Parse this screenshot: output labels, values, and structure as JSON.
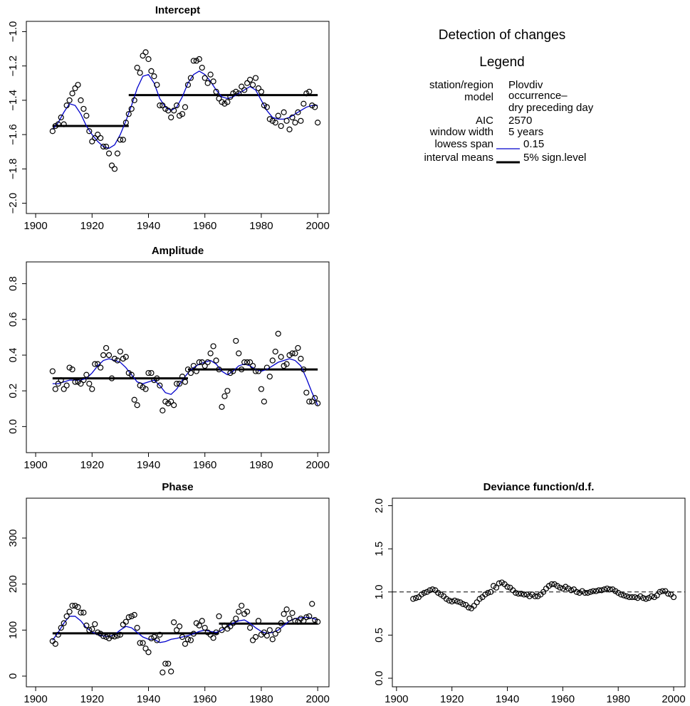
{
  "chart_data": [
    {
      "type": "scatter",
      "title": "Intercept",
      "x": [
        1906,
        1907,
        1908,
        1909,
        1910,
        1911,
        1912,
        1913,
        1914,
        1915,
        1916,
        1917,
        1918,
        1919,
        1920,
        1921,
        1922,
        1923,
        1924,
        1925,
        1926,
        1927,
        1928,
        1929,
        1930,
        1931,
        1932,
        1933,
        1934,
        1935,
        1936,
        1937,
        1938,
        1939,
        1940,
        1941,
        1942,
        1943,
        1944,
        1945,
        1946,
        1947,
        1948,
        1949,
        1950,
        1951,
        1952,
        1953,
        1954,
        1955,
        1956,
        1957,
        1958,
        1959,
        1960,
        1961,
        1962,
        1963,
        1964,
        1965,
        1966,
        1967,
        1968,
        1969,
        1970,
        1971,
        1972,
        1973,
        1974,
        1975,
        1976,
        1977,
        1978,
        1979,
        1980,
        1981,
        1982,
        1983,
        1984,
        1985,
        1986,
        1987,
        1988,
        1989,
        1990,
        1991,
        1992,
        1993,
        1994,
        1995,
        1996,
        1997,
        1998,
        1999,
        2000
      ],
      "values": [
        -1.58,
        -1.55,
        -1.54,
        -1.5,
        -1.54,
        -1.43,
        -1.4,
        -1.36,
        -1.33,
        -1.31,
        -1.4,
        -1.45,
        -1.49,
        -1.58,
        -1.64,
        -1.62,
        -1.6,
        -1.62,
        -1.67,
        -1.67,
        -1.71,
        -1.78,
        -1.8,
        -1.71,
        -1.63,
        -1.63,
        -1.53,
        -1.48,
        -1.45,
        -1.4,
        -1.21,
        -1.24,
        -1.14,
        -1.12,
        -1.16,
        -1.23,
        -1.26,
        -1.31,
        -1.43,
        -1.43,
        -1.45,
        -1.46,
        -1.5,
        -1.46,
        -1.43,
        -1.49,
        -1.48,
        -1.44,
        -1.31,
        -1.27,
        -1.17,
        -1.17,
        -1.16,
        -1.21,
        -1.27,
        -1.3,
        -1.25,
        -1.29,
        -1.35,
        -1.39,
        -1.41,
        -1.42,
        -1.41,
        -1.38,
        -1.36,
        -1.35,
        -1.36,
        -1.32,
        -1.34,
        -1.3,
        -1.28,
        -1.31,
        -1.27,
        -1.33,
        -1.35,
        -1.43,
        -1.44,
        -1.51,
        -1.52,
        -1.53,
        -1.49,
        -1.55,
        -1.47,
        -1.52,
        -1.57,
        -1.5,
        -1.53,
        -1.47,
        -1.52,
        -1.42,
        -1.36,
        -1.35,
        -1.43,
        -1.44,
        -1.53
      ],
      "lowess": {
        "color": "#0000cc",
        "x": [
          1906,
          1908,
          1910,
          1912,
          1914,
          1916,
          1918,
          1920,
          1922,
          1924,
          1926,
          1928,
          1930,
          1932,
          1934,
          1936,
          1938,
          1940,
          1942,
          1944,
          1946,
          1948,
          1950,
          1952,
          1954,
          1956,
          1958,
          1960,
          1962,
          1964,
          1966,
          1968,
          1970,
          1972,
          1974,
          1976,
          1978,
          1980,
          1982,
          1984,
          1986,
          1988,
          1990,
          1992,
          1994,
          1996,
          1998,
          2000
        ],
        "values": [
          -1.57,
          -1.53,
          -1.47,
          -1.42,
          -1.43,
          -1.48,
          -1.55,
          -1.6,
          -1.64,
          -1.67,
          -1.68,
          -1.66,
          -1.6,
          -1.52,
          -1.43,
          -1.33,
          -1.26,
          -1.25,
          -1.3,
          -1.39,
          -1.44,
          -1.46,
          -1.44,
          -1.38,
          -1.3,
          -1.25,
          -1.23,
          -1.25,
          -1.29,
          -1.34,
          -1.38,
          -1.39,
          -1.38,
          -1.36,
          -1.34,
          -1.32,
          -1.34,
          -1.4,
          -1.46,
          -1.5,
          -1.51,
          -1.51,
          -1.5,
          -1.48,
          -1.46,
          -1.44,
          -1.43,
          -1.43
        ]
      },
      "means": [
        {
          "x": [
            1906,
            1933
          ],
          "value": -1.55
        },
        {
          "x": [
            1933,
            2000
          ],
          "value": -1.37
        }
      ],
      "xlim": [
        1896.7,
        2004
      ],
      "ylim": [
        -2.06,
        -0.94
      ],
      "xticks": [
        1900,
        1920,
        1940,
        1960,
        1980,
        2000
      ],
      "yticks": [
        {
          "value": -2,
          "label": "−2.0"
        },
        {
          "value": -1.8,
          "label": "−1.8"
        },
        {
          "value": -1.6,
          "label": "−1.6"
        },
        {
          "value": -1.4,
          "label": "−1.4"
        },
        {
          "value": -1.2,
          "label": "−1.2"
        },
        {
          "value": -1,
          "label": "−1.0"
        }
      ]
    },
    {
      "type": "scatter",
      "title": "Amplitude",
      "x": [
        1906,
        1907,
        1908,
        1909,
        1910,
        1911,
        1912,
        1913,
        1914,
        1915,
        1916,
        1917,
        1918,
        1919,
        1920,
        1921,
        1922,
        1923,
        1924,
        1925,
        1926,
        1927,
        1928,
        1929,
        1930,
        1931,
        1932,
        1933,
        1934,
        1935,
        1936,
        1937,
        1938,
        1939,
        1940,
        1941,
        1942,
        1943,
        1944,
        1945,
        1946,
        1947,
        1948,
        1949,
        1950,
        1951,
        1952,
        1953,
        1954,
        1955,
        1956,
        1957,
        1958,
        1959,
        1960,
        1961,
        1962,
        1963,
        1964,
        1965,
        1966,
        1967,
        1968,
        1969,
        1970,
        1971,
        1972,
        1973,
        1974,
        1975,
        1976,
        1977,
        1978,
        1979,
        1980,
        1981,
        1982,
        1983,
        1984,
        1985,
        1986,
        1987,
        1988,
        1989,
        1990,
        1991,
        1992,
        1993,
        1994,
        1995,
        1996,
        1997,
        1998,
        1999,
        2000
      ],
      "values": [
        0.31,
        0.21,
        0.24,
        0.26,
        0.21,
        0.23,
        0.33,
        0.32,
        0.25,
        0.25,
        0.24,
        0.26,
        0.29,
        0.24,
        0.21,
        0.35,
        0.35,
        0.33,
        0.4,
        0.44,
        0.4,
        0.27,
        0.38,
        0.37,
        0.42,
        0.38,
        0.39,
        0.3,
        0.29,
        0.15,
        0.12,
        0.23,
        0.22,
        0.21,
        0.3,
        0.3,
        0.26,
        0.27,
        0.23,
        0.09,
        0.14,
        0.13,
        0.14,
        0.12,
        0.24,
        0.24,
        0.28,
        0.25,
        0.32,
        0.3,
        0.34,
        0.31,
        0.36,
        0.36,
        0.34,
        0.36,
        0.41,
        0.45,
        0.37,
        0.32,
        0.11,
        0.17,
        0.2,
        0.3,
        0.31,
        0.48,
        0.41,
        0.32,
        0.36,
        0.36,
        0.36,
        0.34,
        0.31,
        0.31,
        0.21,
        0.14,
        0.33,
        0.28,
        0.37,
        0.42,
        0.52,
        0.39,
        0.34,
        0.35,
        0.4,
        0.41,
        0.41,
        0.44,
        0.38,
        0.32,
        0.19,
        0.14,
        0.14,
        0.16,
        0.13
      ],
      "lowess": {
        "color": "#0000cc",
        "x": [
          1906,
          1908,
          1910,
          1912,
          1914,
          1916,
          1918,
          1920,
          1922,
          1924,
          1926,
          1928,
          1930,
          1932,
          1934,
          1936,
          1938,
          1940,
          1942,
          1944,
          1946,
          1948,
          1950,
          1952,
          1954,
          1956,
          1958,
          1960,
          1962,
          1964,
          1966,
          1968,
          1970,
          1972,
          1974,
          1976,
          1978,
          1980,
          1982,
          1984,
          1986,
          1988,
          1990,
          1992,
          1994,
          1996,
          1998,
          2000
        ],
        "values": [
          0.24,
          0.24,
          0.25,
          0.26,
          0.26,
          0.26,
          0.27,
          0.3,
          0.34,
          0.37,
          0.38,
          0.37,
          0.36,
          0.33,
          0.29,
          0.25,
          0.24,
          0.25,
          0.26,
          0.23,
          0.19,
          0.18,
          0.21,
          0.26,
          0.3,
          0.33,
          0.35,
          0.36,
          0.37,
          0.35,
          0.31,
          0.29,
          0.31,
          0.34,
          0.35,
          0.34,
          0.32,
          0.31,
          0.32,
          0.34,
          0.36,
          0.37,
          0.38,
          0.37,
          0.34,
          0.27,
          0.19,
          0.12
        ]
      },
      "means": [
        {
          "x": [
            1906,
            1954
          ],
          "value": 0.27
        },
        {
          "x": [
            1954,
            2000
          ],
          "value": 0.32
        }
      ],
      "xlim": [
        1896.7,
        2004
      ],
      "ylim": [
        -0.146,
        0.922
      ],
      "xticks": [
        1900,
        1920,
        1940,
        1960,
        1980,
        2000
      ],
      "yticks": [
        {
          "value": 0,
          "label": "0.0"
        },
        0.2,
        0.4,
        0.6,
        0.8
      ]
    },
    {
      "type": "scatter",
      "title": "Phase",
      "x": [
        1906,
        1907,
        1908,
        1909,
        1910,
        1911,
        1912,
        1913,
        1914,
        1915,
        1916,
        1917,
        1918,
        1919,
        1920,
        1921,
        1922,
        1923,
        1924,
        1925,
        1926,
        1927,
        1928,
        1929,
        1930,
        1931,
        1932,
        1933,
        1934,
        1935,
        1936,
        1937,
        1938,
        1939,
        1940,
        1941,
        1942,
        1943,
        1944,
        1945,
        1946,
        1947,
        1948,
        1949,
        1950,
        1951,
        1952,
        1953,
        1954,
        1955,
        1956,
        1957,
        1958,
        1959,
        1960,
        1961,
        1962,
        1963,
        1964,
        1965,
        1966,
        1967,
        1968,
        1969,
        1970,
        1971,
        1972,
        1973,
        1974,
        1975,
        1976,
        1977,
        1978,
        1979,
        1980,
        1981,
        1982,
        1983,
        1984,
        1985,
        1986,
        1987,
        1988,
        1989,
        1990,
        1991,
        1992,
        1993,
        1994,
        1995,
        1996,
        1997,
        1998,
        1999,
        2000
      ],
      "values": [
        76,
        70,
        90,
        105,
        115,
        130,
        140,
        153,
        153,
        150,
        138,
        138,
        110,
        100,
        102,
        113,
        95,
        92,
        87,
        85,
        82,
        87,
        86,
        88,
        90,
        112,
        118,
        128,
        130,
        133,
        105,
        72,
        72,
        60,
        52,
        82,
        85,
        78,
        90,
        8,
        27,
        27,
        10,
        117,
        100,
        108,
        85,
        70,
        80,
        78,
        92,
        115,
        110,
        120,
        105,
        95,
        90,
        83,
        95,
        130,
        100,
        110,
        103,
        108,
        115,
        125,
        140,
        153,
        135,
        140,
        105,
        78,
        85,
        120,
        90,
        95,
        88,
        100,
        80,
        92,
        100,
        115,
        135,
        145,
        125,
        137,
        120,
        118,
        125,
        120,
        128,
        130,
        157,
        122,
        118
      ],
      "lowess": {
        "color": "#0000cc",
        "x": [
          1906,
          1908,
          1910,
          1912,
          1914,
          1916,
          1918,
          1920,
          1922,
          1924,
          1926,
          1928,
          1930,
          1932,
          1934,
          1936,
          1938,
          1940,
          1942,
          1944,
          1946,
          1948,
          1950,
          1952,
          1954,
          1956,
          1958,
          1960,
          1962,
          1964,
          1966,
          1968,
          1970,
          1972,
          1974,
          1976,
          1978,
          1980,
          1982,
          1984,
          1986,
          1988,
          1990,
          1992,
          1994,
          1996,
          1998,
          2000
        ],
        "values": [
          78,
          95,
          115,
          130,
          130,
          120,
          105,
          96,
          90,
          87,
          86,
          90,
          100,
          108,
          105,
          95,
          85,
          80,
          80,
          73,
          75,
          80,
          82,
          85,
          88,
          92,
          97,
          100,
          97,
          95,
          100,
          108,
          115,
          120,
          122,
          115,
          105,
          97,
          93,
          95,
          100,
          110,
          120,
          125,
          127,
          128,
          126,
          122
        ]
      },
      "means": [
        {
          "x": [
            1906,
            1965
          ],
          "value": 93
        },
        {
          "x": [
            1965,
            2000
          ],
          "value": 114
        }
      ],
      "xlim": [
        1896.7,
        2004
      ],
      "ylim": [
        -23.2,
        386.6
      ],
      "xticks": [
        1900,
        1920,
        1940,
        1960,
        1980,
        2000
      ],
      "yticks": [
        0,
        100,
        200,
        300
      ]
    },
    {
      "type": "scatter",
      "title": "Deviance function/d.f.",
      "x": [
        1906,
        1907,
        1908,
        1909,
        1910,
        1911,
        1912,
        1913,
        1914,
        1915,
        1916,
        1917,
        1918,
        1919,
        1920,
        1921,
        1922,
        1923,
        1924,
        1925,
        1926,
        1927,
        1928,
        1929,
        1930,
        1931,
        1932,
        1933,
        1934,
        1935,
        1936,
        1937,
        1938,
        1939,
        1940,
        1941,
        1942,
        1943,
        1944,
        1945,
        1946,
        1947,
        1948,
        1949,
        1950,
        1951,
        1952,
        1953,
        1954,
        1955,
        1956,
        1957,
        1958,
        1959,
        1960,
        1961,
        1962,
        1963,
        1964,
        1965,
        1966,
        1967,
        1968,
        1969,
        1970,
        1971,
        1972,
        1973,
        1974,
        1975,
        1976,
        1977,
        1978,
        1979,
        1980,
        1981,
        1982,
        1983,
        1984,
        1985,
        1986,
        1987,
        1988,
        1989,
        1990,
        1991,
        1992,
        1993,
        1994,
        1995,
        1996,
        1997,
        1998,
        1999,
        2000
      ],
      "values": [
        0.92,
        0.93,
        0.94,
        0.97,
        0.99,
        1.0,
        1.02,
        1.03,
        1.02,
        0.99,
        0.97,
        0.95,
        0.92,
        0.9,
        0.89,
        0.9,
        0.89,
        0.88,
        0.86,
        0.85,
        0.82,
        0.81,
        0.84,
        0.88,
        0.92,
        0.94,
        0.97,
        0.99,
        1.0,
        1.07,
        1.05,
        1.1,
        1.11,
        1.09,
        1.06,
        1.05,
        1.02,
        0.99,
        0.98,
        0.98,
        0.97,
        0.97,
        0.95,
        0.97,
        0.95,
        0.95,
        0.97,
        1.0,
        1.04,
        1.07,
        1.09,
        1.09,
        1.07,
        1.05,
        1.04,
        1.06,
        1.04,
        1.02,
        1.03,
        1.0,
        0.99,
        1.01,
        0.99,
        0.99,
        1.0,
        1.01,
        1.01,
        1.02,
        1.02,
        1.03,
        1.04,
        1.03,
        1.03,
        1.01,
        0.99,
        0.97,
        0.96,
        0.95,
        0.94,
        0.94,
        0.94,
        0.93,
        0.95,
        0.93,
        0.92,
        0.93,
        0.95,
        0.94,
        0.96,
        1.0,
        1.01,
        1.01,
        0.98,
        0.97,
        0.94
      ],
      "refline": 1,
      "xlim": [
        1898.5,
        2004.1
      ],
      "ylim": [
        -0.099,
        2.087
      ],
      "xticks": [
        1900,
        1920,
        1940,
        1960,
        1980,
        2000
      ],
      "yticks": [
        {
          "value": 0,
          "label": "0.0"
        },
        0.5,
        {
          "value": 1,
          "label": "1.0"
        },
        1.5,
        {
          "value": 2,
          "label": "2.0"
        }
      ]
    }
  ],
  "legend_panel": {
    "title": "Detection of changes",
    "heading": "Legend",
    "rows": [
      {
        "label": "station/region",
        "values": [
          "Plovdiv"
        ]
      },
      {
        "label": "model",
        "values": [
          "occurrence–",
          "dry preceding day"
        ]
      },
      {
        "label": "AIC",
        "values": [
          "2570"
        ]
      },
      {
        "label": "window width",
        "values": [
          "5 years"
        ]
      },
      {
        "label": "lowess span",
        "values": [
          "0.15"
        ]
      },
      {
        "label": "interval means",
        "values": [
          "5% sign.level"
        ]
      }
    ]
  }
}
